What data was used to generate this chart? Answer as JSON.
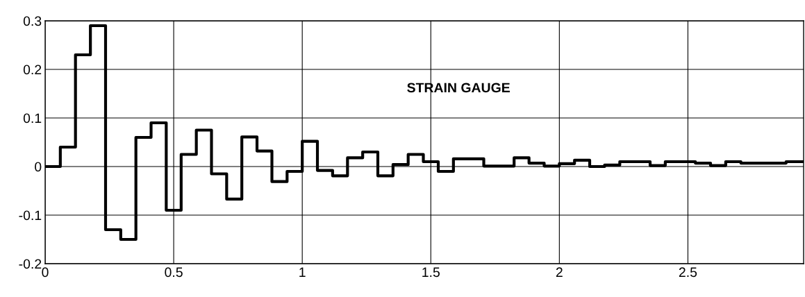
{
  "chart_data": {
    "type": "step",
    "title": "STRAIN GAUGE",
    "x": [
      0,
      0.059,
      0.118,
      0.176,
      0.235,
      0.294,
      0.353,
      0.412,
      0.471,
      0.529,
      0.588,
      0.647,
      0.706,
      0.765,
      0.824,
      0.882,
      0.941,
      1,
      1.059,
      1.118,
      1.176,
      1.235,
      1.294,
      1.353,
      1.412,
      1.471,
      1.529,
      1.588,
      1.647,
      1.706,
      1.765,
      1.824,
      1.882,
      1.941,
      2,
      2.059,
      2.118,
      2.176,
      2.235,
      2.294,
      2.353,
      2.412,
      2.471,
      2.529,
      2.588,
      2.647,
      2.706,
      2.765,
      2.824,
      2.882,
      2.941,
      2.95
    ],
    "series": [
      {
        "color": "#000000",
        "values": [
          0,
          0.04,
          0.23,
          0.29,
          -0.13,
          -0.15,
          0.06,
          0.09,
          -0.09,
          0.025,
          0.075,
          -0.015,
          -0.067,
          0.061,
          0.032,
          -0.031,
          -0.01,
          0.052,
          -0.008,
          -0.019,
          0.018,
          0.03,
          -0.019,
          0.004,
          0.025,
          0.01,
          -0.01,
          0.016,
          0.016,
          0.001,
          0.001,
          0.018,
          0.007,
          0.001,
          0.006,
          0.013,
          0,
          0.003,
          0.01,
          0.01,
          0.002,
          0.01,
          0.01,
          0.007,
          0.002,
          0.01,
          0.007,
          0.007,
          0.007,
          0.01,
          0.01,
          0.01
        ]
      }
    ],
    "xlim": [
      0,
      2.95
    ],
    "ylim": [
      -0.2,
      0.3
    ],
    "xticks": [
      0,
      0.5,
      1,
      1.5,
      2,
      2.5
    ],
    "yticks": [
      -0.2,
      -0.1,
      0,
      0.1,
      0.2,
      0.3
    ],
    "grid": true,
    "legend": false,
    "line_style": "solid",
    "marker": "none"
  }
}
